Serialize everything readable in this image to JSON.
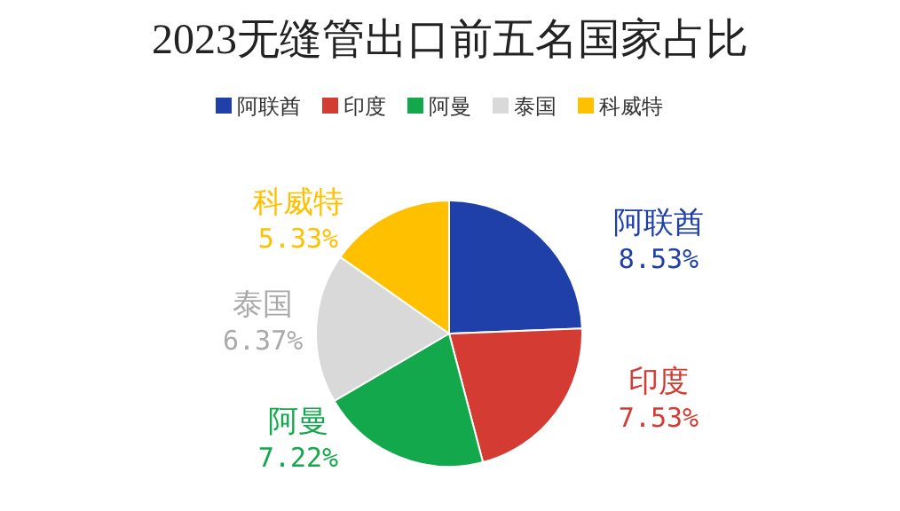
{
  "chart_data": {
    "type": "pie",
    "title": "2023无缝管出口前五名国家占比",
    "categories": [
      "阿联酋",
      "印度",
      "阿曼",
      "泰国",
      "科威特"
    ],
    "values": [
      8.53,
      7.53,
      7.22,
      6.37,
      5.33
    ],
    "value_labels": [
      "8.53%",
      "7.53%",
      "7.22%",
      "6.37%",
      "5.33%"
    ],
    "colors": [
      "#1e40a8",
      "#d33b33",
      "#12a84b",
      "#d9d9d9",
      "#ffc000"
    ],
    "legend": "top"
  }
}
